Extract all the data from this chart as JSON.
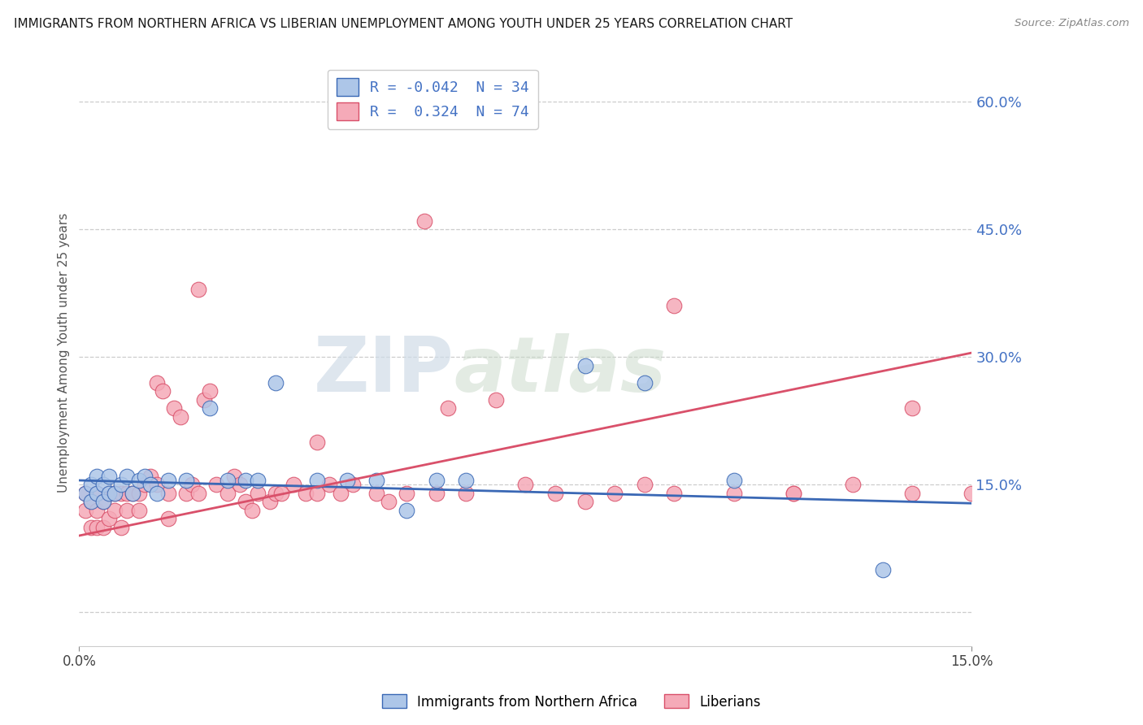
{
  "title": "IMMIGRANTS FROM NORTHERN AFRICA VS LIBERIAN UNEMPLOYMENT AMONG YOUTH UNDER 25 YEARS CORRELATION CHART",
  "source": "Source: ZipAtlas.com",
  "ylabel": "Unemployment Among Youth under 25 years",
  "xmin": 0.0,
  "xmax": 0.15,
  "ymin": -0.04,
  "ymax": 0.65,
  "yticks": [
    0.0,
    0.15,
    0.3,
    0.45,
    0.6
  ],
  "ytick_labels": [
    "",
    "15.0%",
    "30.0%",
    "45.0%",
    "60.0%"
  ],
  "blue_R": -0.042,
  "blue_N": 34,
  "pink_R": 0.324,
  "pink_N": 74,
  "blue_color": "#adc6e8",
  "pink_color": "#f5aab8",
  "blue_line_color": "#3a68b5",
  "pink_line_color": "#d9506a",
  "legend_label_blue": "Immigrants from Northern Africa",
  "legend_label_pink": "Liberians",
  "watermark_zip": "ZIP",
  "watermark_atlas": "atlas",
  "blue_line_x0": 0.0,
  "blue_line_y0": 0.155,
  "blue_line_x1": 0.15,
  "blue_line_y1": 0.128,
  "pink_line_x0": 0.0,
  "pink_line_y0": 0.09,
  "pink_line_x1": 0.15,
  "pink_line_y1": 0.305,
  "blue_scatter_x": [
    0.001,
    0.002,
    0.002,
    0.003,
    0.003,
    0.004,
    0.004,
    0.005,
    0.005,
    0.006,
    0.007,
    0.008,
    0.009,
    0.01,
    0.011,
    0.012,
    0.013,
    0.015,
    0.018,
    0.022,
    0.025,
    0.028,
    0.03,
    0.033,
    0.04,
    0.045,
    0.05,
    0.055,
    0.06,
    0.065,
    0.085,
    0.095,
    0.11,
    0.135
  ],
  "blue_scatter_y": [
    0.14,
    0.15,
    0.13,
    0.14,
    0.16,
    0.13,
    0.15,
    0.14,
    0.16,
    0.14,
    0.15,
    0.16,
    0.14,
    0.155,
    0.16,
    0.15,
    0.14,
    0.155,
    0.155,
    0.24,
    0.155,
    0.155,
    0.155,
    0.27,
    0.155,
    0.155,
    0.155,
    0.12,
    0.155,
    0.155,
    0.29,
    0.27,
    0.155,
    0.05
  ],
  "pink_scatter_x": [
    0.001,
    0.001,
    0.002,
    0.002,
    0.003,
    0.003,
    0.003,
    0.004,
    0.004,
    0.005,
    0.005,
    0.006,
    0.006,
    0.007,
    0.007,
    0.008,
    0.008,
    0.009,
    0.01,
    0.01,
    0.011,
    0.012,
    0.013,
    0.013,
    0.014,
    0.015,
    0.015,
    0.016,
    0.017,
    0.018,
    0.019,
    0.02,
    0.021,
    0.022,
    0.023,
    0.025,
    0.026,
    0.027,
    0.028,
    0.029,
    0.03,
    0.032,
    0.033,
    0.034,
    0.036,
    0.038,
    0.04,
    0.042,
    0.044,
    0.046,
    0.05,
    0.052,
    0.055,
    0.058,
    0.062,
    0.065,
    0.07,
    0.075,
    0.08,
    0.085,
    0.09,
    0.095,
    0.1,
    0.11,
    0.12,
    0.13,
    0.14,
    0.15,
    0.02,
    0.04,
    0.06,
    0.1,
    0.12,
    0.14
  ],
  "pink_scatter_y": [
    0.14,
    0.12,
    0.13,
    0.1,
    0.14,
    0.12,
    0.1,
    0.13,
    0.1,
    0.14,
    0.11,
    0.14,
    0.12,
    0.14,
    0.1,
    0.14,
    0.12,
    0.14,
    0.14,
    0.12,
    0.15,
    0.16,
    0.15,
    0.27,
    0.26,
    0.14,
    0.11,
    0.24,
    0.23,
    0.14,
    0.15,
    0.14,
    0.25,
    0.26,
    0.15,
    0.14,
    0.16,
    0.15,
    0.13,
    0.12,
    0.14,
    0.13,
    0.14,
    0.14,
    0.15,
    0.14,
    0.2,
    0.15,
    0.14,
    0.15,
    0.14,
    0.13,
    0.14,
    0.46,
    0.24,
    0.14,
    0.25,
    0.15,
    0.14,
    0.13,
    0.14,
    0.15,
    0.36,
    0.14,
    0.14,
    0.15,
    0.14,
    0.14,
    0.38,
    0.14,
    0.14,
    0.14,
    0.14,
    0.24
  ]
}
